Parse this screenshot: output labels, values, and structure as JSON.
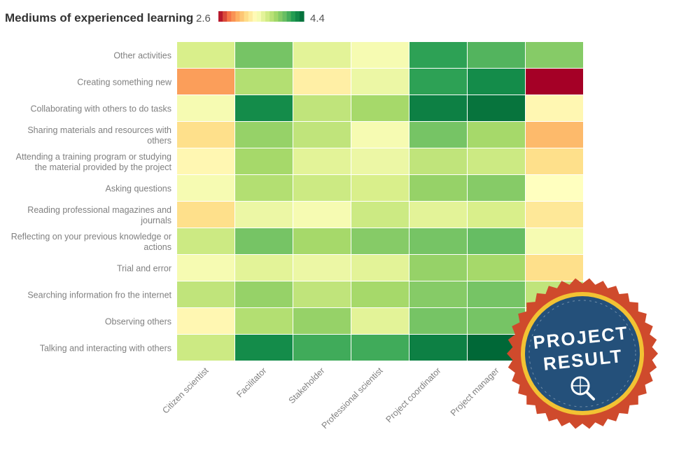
{
  "chart_data": {
    "type": "heatmap",
    "title": "Mediums of experienced learning",
    "scale": {
      "min": 2.6,
      "max": 4.4,
      "min_label": "2.6",
      "max_label": "4.4",
      "colors": [
        "#a50026",
        "#f46d43",
        "#fdae61",
        "#fee08b",
        "#ffffbf",
        "#d9ef8b",
        "#a6d96a",
        "#66bd63",
        "#1a9850",
        "#006837"
      ]
    },
    "columns": [
      "Citizen scientist",
      "Facilitator",
      "Stakeholder",
      "Professional scientist",
      "Project coordinator",
      "Project manager",
      ""
    ],
    "rows": [
      {
        "label": [
          "Other activities"
        ],
        "values": [
          3.6,
          3.95,
          3.55,
          3.45,
          4.15,
          4.05,
          3.9
        ]
      },
      {
        "label": [
          "Creating something new"
        ],
        "values": [
          2.95,
          3.75,
          3.3,
          3.5,
          4.15,
          4.25,
          2.6
        ]
      },
      {
        "label": [
          "Collaborating with others to do tasks"
        ],
        "values": [
          3.45,
          4.25,
          3.7,
          3.8,
          4.3,
          4.35,
          3.35
        ]
      },
      {
        "label": [
          "Sharing materials and resources with",
          "others"
        ],
        "values": [
          3.2,
          3.85,
          3.7,
          3.45,
          3.95,
          3.8,
          3.05
        ]
      },
      {
        "label": [
          "Attending a training program or studying",
          "the material provided by the project"
        ],
        "values": [
          3.35,
          3.8,
          3.55,
          3.5,
          3.7,
          3.65,
          3.2
        ]
      },
      {
        "label": [
          "Asking questions"
        ],
        "values": [
          3.45,
          3.75,
          3.65,
          3.6,
          3.85,
          3.9,
          3.4
        ]
      },
      {
        "label": [
          "Reading professional magazines and",
          "journals"
        ],
        "values": [
          3.2,
          3.5,
          3.45,
          3.65,
          3.55,
          3.6,
          3.25
        ]
      },
      {
        "label": [
          "Reflecting on your previous knowledge or",
          "actions"
        ],
        "values": [
          3.65,
          3.95,
          3.8,
          3.9,
          3.95,
          4.0,
          3.45
        ]
      },
      {
        "label": [
          "Trial and error"
        ],
        "values": [
          3.45,
          3.55,
          3.5,
          3.55,
          3.85,
          3.8,
          3.2
        ]
      },
      {
        "label": [
          "Searching information fro the internet"
        ],
        "values": [
          3.7,
          3.85,
          3.7,
          3.8,
          3.9,
          3.95,
          3.7
        ]
      },
      {
        "label": [
          "Observing others"
        ],
        "values": [
          3.35,
          3.75,
          3.85,
          3.55,
          3.95,
          3.95,
          3.6
        ]
      },
      {
        "label": [
          "Talking and interacting with others"
        ],
        "values": [
          3.65,
          4.25,
          4.1,
          4.1,
          4.3,
          4.4,
          4.2
        ]
      }
    ]
  },
  "badge": {
    "line1": "PROJECT",
    "line2": "RESULT",
    "colors": {
      "outer": "#cf4a2c",
      "ring": "#f2c233",
      "inner": "#24507a"
    }
  }
}
